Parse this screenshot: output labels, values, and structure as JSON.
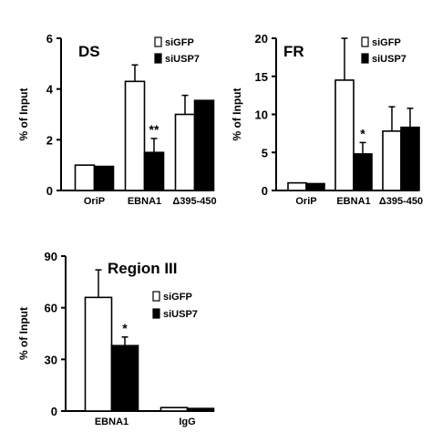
{
  "chart_data": [
    {
      "type": "bar",
      "title": "DS",
      "ylabel": "% of Input",
      "ylim": [
        0,
        6
      ],
      "yticks": [
        "0",
        "2",
        "4",
        "6"
      ],
      "categories": [
        "OriP",
        "EBNA1",
        "Δ395-450"
      ],
      "series": [
        {
          "name": "siGFP",
          "fill": "#ffffff",
          "values": [
            1.0,
            4.3,
            3.0
          ],
          "errors": [
            0,
            0.65,
            0.75
          ]
        },
        {
          "name": "siUSP7",
          "fill": "#000000",
          "values": [
            0.95,
            1.5,
            3.55
          ],
          "errors": [
            0,
            0.55,
            0
          ]
        }
      ],
      "annotations": [
        {
          "category": 1,
          "series": 1,
          "text": "**"
        }
      ],
      "legend_position": "top-right"
    },
    {
      "type": "bar",
      "title": "FR",
      "ylabel": "% of Input",
      "ylim": [
        0,
        20
      ],
      "yticks": [
        "0",
        "5",
        "10",
        "15",
        "20"
      ],
      "categories": [
        "OriP",
        "EBNA1",
        "Δ395-450"
      ],
      "series": [
        {
          "name": "siGFP",
          "fill": "#ffffff",
          "values": [
            1.0,
            14.5,
            7.8
          ],
          "errors": [
            0,
            5.5,
            3.2
          ]
        },
        {
          "name": "siUSP7",
          "fill": "#000000",
          "values": [
            0.9,
            4.8,
            8.3
          ],
          "errors": [
            0,
            1.5,
            2.5
          ]
        }
      ],
      "annotations": [
        {
          "category": 1,
          "series": 1,
          "text": "*"
        }
      ],
      "legend_position": "top-right"
    },
    {
      "type": "bar",
      "title": "Region III",
      "ylabel": "% of Input",
      "ylim": [
        0,
        90
      ],
      "yticks": [
        "0",
        "30",
        "60",
        "90"
      ],
      "categories": [
        "EBNA1",
        "IgG"
      ],
      "series": [
        {
          "name": "siGFP",
          "fill": "#ffffff",
          "values": [
            66,
            2
          ],
          "errors": [
            16,
            0
          ]
        },
        {
          "name": "siUSP7",
          "fill": "#000000",
          "values": [
            38,
            1.5
          ],
          "errors": [
            5,
            0
          ]
        }
      ],
      "annotations": [
        {
          "category": 0,
          "series": 1,
          "text": "*"
        }
      ],
      "legend_position": "right"
    }
  ]
}
